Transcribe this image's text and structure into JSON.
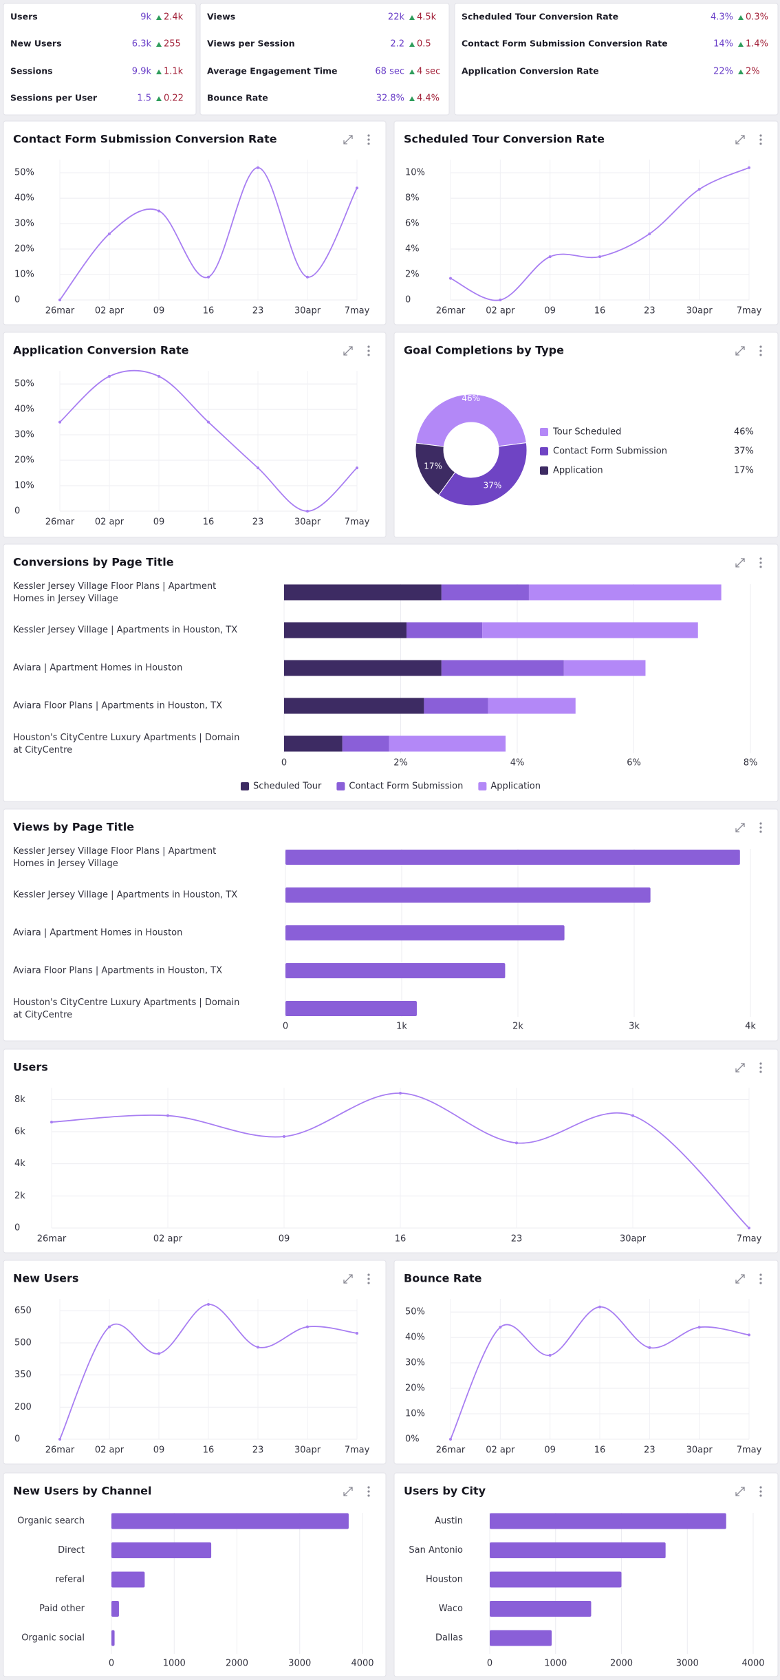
{
  "kpi_cards": [
    {
      "rows": [
        {
          "label": "Users",
          "value": "9k",
          "delta": "2.4k"
        },
        {
          "label": "New Users",
          "value": "6.3k",
          "delta": "255"
        },
        {
          "label": "Sessions",
          "value": "9.9k",
          "delta": "1.1k"
        },
        {
          "label": "Sessions per User",
          "value": "1.5",
          "delta": "0.22"
        }
      ]
    },
    {
      "rows": [
        {
          "label": "Views",
          "value": "22k",
          "delta": "4.5k"
        },
        {
          "label": "Views per Session",
          "value": "2.2",
          "delta": "0.5"
        },
        {
          "label": "Average Engagement Time",
          "value": "68 sec",
          "delta": "4 sec"
        },
        {
          "label": "Bounce Rate",
          "value": "32.8%",
          "delta": "4.4%"
        }
      ]
    },
    {
      "rows": [
        {
          "label": "Scheduled Tour Conversion Rate",
          "value": "4.3%",
          "delta": "0.3%"
        },
        {
          "label": "Contact Form Submission Conversion Rate",
          "value": "14%",
          "delta": "1.4%"
        },
        {
          "label": "Application Conversion Rate",
          "value": "22%",
          "delta": "2%"
        }
      ]
    }
  ],
  "chart_data": [
    {
      "type": "line",
      "title": "Contact Form Submission Conversion Rate",
      "categories": [
        "26mar",
        "02 apr",
        "09",
        "16",
        "23",
        "30apr",
        "7may"
      ],
      "values": [
        0,
        26,
        35,
        9,
        52,
        9,
        44
      ],
      "color": "#a87ef2",
      "ylim": [
        0,
        53
      ],
      "yticks": [
        0,
        {
          "value": 10,
          "label": "10%"
        },
        {
          "value": 20,
          "label": "20%"
        },
        {
          "value": 30,
          "label": "30%"
        },
        {
          "value": 40,
          "label": "40%"
        },
        {
          "value": 50,
          "label": "50%"
        }
      ],
      "grid": true
    },
    {
      "type": "line",
      "title": "Scheduled Tour Conversion Rate",
      "categories": [
        "26mar",
        "02 apr",
        "09",
        "16",
        "23",
        "30apr",
        "7may"
      ],
      "values": [
        1.7,
        0,
        3.4,
        3.4,
        5.2,
        8.7,
        10.4
      ],
      "color": "#a87ef2",
      "ylim": [
        0,
        10.6
      ],
      "yticks": [
        0,
        {
          "value": 2,
          "label": "2%"
        },
        {
          "value": 4,
          "label": "4%"
        },
        {
          "value": 6,
          "label": "6%"
        },
        {
          "value": 8,
          "label": "8%"
        },
        {
          "value": 10,
          "label": "10%"
        }
      ],
      "grid": true
    },
    {
      "type": "line",
      "title": "Application Conversion Rate",
      "categories": [
        "26mar",
        "02 apr",
        "09",
        "16",
        "23",
        "30apr",
        "7may"
      ],
      "values": [
        35,
        53,
        53,
        35,
        17,
        0,
        17
      ],
      "color": "#a87ef2",
      "ylim": [
        0,
        53
      ],
      "yticks": [
        0,
        {
          "value": 10,
          "label": "10%"
        },
        {
          "value": 20,
          "label": "20%"
        },
        {
          "value": 30,
          "label": "30%"
        },
        {
          "value": 40,
          "label": "40%"
        },
        {
          "value": 50,
          "label": "50%"
        }
      ],
      "grid": true
    },
    {
      "type": "pie",
      "title": "Goal Completions by Type",
      "donut": true,
      "categories": [
        "Tour Scheduled",
        "Contact Form Submission",
        "Application"
      ],
      "values": [
        46,
        37,
        17
      ],
      "value_labels": [
        "46%",
        "37%",
        "17%"
      ],
      "colors": [
        "#b388f7",
        "#6f44c4",
        "#3d2b63"
      ]
    },
    {
      "type": "bar",
      "orientation": "horizontal",
      "stacked": true,
      "title": "Conversions by Page Title",
      "categories": [
        "Kessler Jersey Village Floor Plans | Apartment Homes in Jersey Village",
        "Kessler Jersey Village | Apartments in Houston, TX",
        "Aviara | Apartment Homes in Houston",
        "Aviara Floor Plans | Apartments in Houston, TX",
        "Houston's CityCentre Luxury Apartments | Domain at CityCentre"
      ],
      "series": [
        {
          "name": "Scheduled Tour",
          "color": "#3d2b63",
          "values": [
            2.7,
            2.1,
            2.7,
            2.4,
            1.0
          ]
        },
        {
          "name": "Contact Form Submission",
          "color": "#8a5fd8",
          "values": [
            1.5,
            1.3,
            2.1,
            1.1,
            0.8
          ]
        },
        {
          "name": "Application",
          "color": "#b388f7",
          "values": [
            3.3,
            3.7,
            1.4,
            1.5,
            2.0
          ]
        }
      ],
      "xlim": [
        0,
        8
      ],
      "xticks": [
        0,
        {
          "value": 2,
          "label": "2%"
        },
        {
          "value": 4,
          "label": "4%"
        },
        {
          "value": 6,
          "label": "6%"
        },
        {
          "value": 8,
          "label": "8%"
        }
      ],
      "grid": true
    },
    {
      "type": "bar",
      "orientation": "horizontal",
      "title": "Views by Page Title",
      "categories": [
        "Kessler Jersey Village Floor Plans | Apartment Homes in Jersey Village",
        "Kessler Jersey Village | Apartments in Houston, TX",
        "Aviara | Apartment Homes in Houston",
        "Aviara Floor Plans | Apartments in Houston, TX",
        "Houston's CityCentre Luxury Apartments | Domain at CityCentre"
      ],
      "values": [
        3910,
        3140,
        2400,
        1890,
        1130
      ],
      "color": "#8a5fd8",
      "xlim": [
        0,
        4000
      ],
      "xticks": [
        0,
        {
          "value": 1000,
          "label": "1k"
        },
        {
          "value": 2000,
          "label": "2k"
        },
        {
          "value": 3000,
          "label": "3k"
        },
        {
          "value": 4000,
          "label": "4k"
        }
      ],
      "grid": true
    },
    {
      "type": "line",
      "title": "Users",
      "categories": [
        "26mar",
        "02 apr",
        "09",
        "16",
        "23",
        "30apr",
        "7may"
      ],
      "values": [
        6600,
        7000,
        5700,
        8400,
        5300,
        7000,
        0
      ],
      "color": "#a87ef2",
      "ylim": [
        0,
        8400
      ],
      "yticks": [
        0,
        {
          "value": 2000,
          "label": "2k"
        },
        {
          "value": 4000,
          "label": "4k"
        },
        {
          "value": 6000,
          "label": "6k"
        },
        {
          "value": 8000,
          "label": "8k"
        }
      ],
      "grid": true
    },
    {
      "type": "line",
      "title": "New Users",
      "categories": [
        "26mar",
        "02 apr",
        "09",
        "16",
        "23",
        "30apr",
        "7may"
      ],
      "values": [
        0,
        575,
        450,
        680,
        480,
        575,
        545
      ],
      "color": "#a87ef2",
      "ylim": [
        0,
        680
      ],
      "yticks": [
        0,
        200,
        350,
        500,
        650
      ],
      "grid": true
    },
    {
      "type": "line",
      "title": "Bounce Rate",
      "categories": [
        "26mar",
        "02 apr",
        "09",
        "16",
        "23",
        "30apr",
        "7may"
      ],
      "values": [
        0,
        44,
        33,
        52,
        36,
        44,
        41
      ],
      "color": "#a87ef2",
      "ylim": [
        0,
        53
      ],
      "yticks": [
        {
          "value": 0,
          "label": "0%"
        },
        {
          "value": 10,
          "label": "10%"
        },
        {
          "value": 20,
          "label": "20%"
        },
        {
          "value": 30,
          "label": "30%"
        },
        {
          "value": 40,
          "label": "40%"
        },
        {
          "value": 50,
          "label": "50%"
        }
      ],
      "grid": true
    },
    {
      "type": "bar",
      "orientation": "horizontal",
      "title": "New Users by Channel",
      "categories": [
        "Organic search",
        "Direct",
        "referal",
        "Paid other",
        "Organic social"
      ],
      "values": [
        3780,
        1590,
        530,
        120,
        50
      ],
      "color": "#8a5fd8",
      "xlim": [
        0,
        4000
      ],
      "xticks": [
        0,
        1000,
        2000,
        3000,
        4000
      ],
      "grid": true
    },
    {
      "type": "bar",
      "orientation": "horizontal",
      "title": "Users by City",
      "categories": [
        "Austin",
        "San Antonio",
        "Houston",
        "Waco",
        "Dallas"
      ],
      "values": [
        3590,
        2670,
        2000,
        1540,
        940
      ],
      "color": "#8a5fd8",
      "xlim": [
        0,
        4000
      ],
      "xticks": [
        0,
        1000,
        2000,
        3000,
        4000
      ],
      "grid": true
    }
  ]
}
